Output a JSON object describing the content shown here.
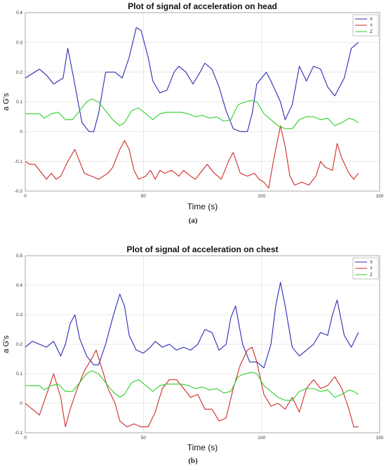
{
  "figures": [
    {
      "caption": "(a)"
    },
    {
      "caption": "(b)"
    }
  ],
  "chart_data": [
    {
      "type": "line",
      "title": "Plot of signal of acceleration on head",
      "xlabel": "Time (s)",
      "ylabel": "a G's",
      "xlim": [
        0,
        150
      ],
      "ylim": [
        -0.2,
        0.4
      ],
      "xticks": [
        "0",
        "50",
        "100",
        "150"
      ],
      "yticks": [
        "-0.2",
        "-0.1",
        "0",
        "0.1",
        "0.2",
        "0.3",
        "0.4"
      ],
      "grid": true,
      "legend_position": "top-right",
      "series": [
        {
          "name": "X",
          "color": "#2b2bb5",
          "x": [
            0,
            2,
            6,
            9,
            12,
            16,
            18,
            20,
            24,
            27,
            29,
            31,
            34,
            38,
            41,
            44,
            47,
            49,
            52,
            54,
            57,
            60,
            63,
            65,
            68,
            71,
            74,
            76,
            79,
            82,
            85,
            88,
            91,
            94,
            96,
            98,
            102,
            104,
            108,
            110,
            113,
            116,
            119,
            122,
            125,
            128,
            131,
            135,
            138,
            141
          ],
          "y": [
            0.18,
            0.19,
            0.21,
            0.19,
            0.16,
            0.18,
            0.28,
            0.2,
            0.03,
            0.0,
            0.0,
            0.06,
            0.2,
            0.2,
            0.18,
            0.25,
            0.35,
            0.34,
            0.25,
            0.17,
            0.13,
            0.14,
            0.2,
            0.22,
            0.2,
            0.16,
            0.2,
            0.23,
            0.21,
            0.15,
            0.07,
            0.01,
            0.0,
            0.0,
            0.06,
            0.16,
            0.2,
            0.17,
            0.1,
            0.04,
            0.09,
            0.22,
            0.17,
            0.22,
            0.21,
            0.15,
            0.12,
            0.18,
            0.28,
            0.3
          ]
        },
        {
          "name": "Y",
          "color": "#d12a2a",
          "x": [
            0,
            2,
            4,
            7,
            9,
            11,
            13,
            15,
            18,
            21,
            23,
            25,
            28,
            31,
            33,
            35,
            37,
            40,
            42,
            44,
            46,
            48,
            51,
            53,
            55,
            57,
            59,
            62,
            65,
            67,
            70,
            72,
            75,
            77,
            80,
            83,
            86,
            88,
            91,
            94,
            97,
            99,
            101,
            103,
            105,
            108,
            110,
            112,
            114,
            117,
            120,
            123,
            125,
            127,
            130,
            132,
            134,
            137,
            139,
            141
          ],
          "y": [
            -0.1,
            -0.11,
            -0.11,
            -0.14,
            -0.16,
            -0.14,
            -0.16,
            -0.15,
            -0.1,
            -0.06,
            -0.1,
            -0.14,
            -0.15,
            -0.16,
            -0.15,
            -0.14,
            -0.12,
            -0.06,
            -0.03,
            -0.06,
            -0.13,
            -0.16,
            -0.15,
            -0.13,
            -0.16,
            -0.13,
            -0.14,
            -0.13,
            -0.15,
            -0.13,
            -0.15,
            -0.16,
            -0.13,
            -0.11,
            -0.14,
            -0.16,
            -0.1,
            -0.07,
            -0.14,
            -0.15,
            -0.14,
            -0.16,
            -0.17,
            -0.19,
            -0.1,
            0.02,
            -0.05,
            -0.15,
            -0.18,
            -0.17,
            -0.18,
            -0.15,
            -0.1,
            -0.12,
            -0.13,
            -0.04,
            -0.09,
            -0.14,
            -0.16,
            -0.14
          ]
        },
        {
          "name": "Z",
          "color": "#2bd12b",
          "x": [
            0,
            3,
            6,
            8,
            11,
            14,
            17,
            20,
            23,
            26,
            28,
            31,
            34,
            37,
            40,
            42,
            45,
            48,
            51,
            54,
            57,
            60,
            63,
            66,
            69,
            72,
            75,
            78,
            81,
            84,
            87,
            90,
            93,
            96,
            98,
            101,
            104,
            107,
            110,
            113,
            116,
            119,
            122,
            125,
            128,
            131,
            134,
            137,
            139,
            141
          ],
          "y": [
            0.06,
            0.06,
            0.06,
            0.045,
            0.06,
            0.065,
            0.04,
            0.04,
            0.07,
            0.1,
            0.11,
            0.1,
            0.07,
            0.04,
            0.02,
            0.03,
            0.07,
            0.08,
            0.06,
            0.04,
            0.06,
            0.065,
            0.065,
            0.065,
            0.06,
            0.05,
            0.055,
            0.045,
            0.05,
            0.035,
            0.04,
            0.09,
            0.1,
            0.105,
            0.1,
            0.06,
            0.04,
            0.02,
            0.01,
            0.01,
            0.04,
            0.05,
            0.05,
            0.04,
            0.045,
            0.02,
            0.03,
            0.045,
            0.04,
            0.03
          ]
        }
      ]
    },
    {
      "type": "line",
      "title": "Plot of signal of acceleration on chest",
      "xlabel": "Time (s)",
      "ylabel": "a G's",
      "xlim": [
        0,
        150
      ],
      "ylim": [
        -0.1,
        0.5
      ],
      "xticks": [
        "0",
        "50",
        "100",
        "150"
      ],
      "yticks": [
        "-0.1",
        "0",
        "0.1",
        "0.2",
        "0.3",
        "0.4",
        "0.5"
      ],
      "grid": true,
      "legend_position": "top-right",
      "series": [
        {
          "name": "X",
          "color": "#2b2bb5",
          "x": [
            0,
            3,
            6,
            9,
            12,
            15,
            17,
            19,
            21,
            23,
            26,
            29,
            31,
            34,
            37,
            40,
            42,
            44,
            47,
            50,
            53,
            55,
            58,
            61,
            64,
            67,
            70,
            73,
            76,
            79,
            82,
            85,
            87,
            89,
            92,
            95,
            98,
            101,
            104,
            106,
            108,
            110,
            113,
            116,
            119,
            122,
            125,
            128,
            130,
            132,
            135,
            138,
            141
          ],
          "y": [
            0.19,
            0.21,
            0.2,
            0.19,
            0.21,
            0.16,
            0.2,
            0.27,
            0.3,
            0.22,
            0.16,
            0.13,
            0.13,
            0.2,
            0.29,
            0.37,
            0.33,
            0.23,
            0.18,
            0.17,
            0.19,
            0.21,
            0.19,
            0.2,
            0.18,
            0.19,
            0.18,
            0.2,
            0.25,
            0.24,
            0.18,
            0.2,
            0.29,
            0.33,
            0.2,
            0.14,
            0.14,
            0.12,
            0.2,
            0.33,
            0.41,
            0.33,
            0.19,
            0.16,
            0.18,
            0.2,
            0.24,
            0.23,
            0.3,
            0.35,
            0.23,
            0.19,
            0.24
          ]
        },
        {
          "name": "Y",
          "color": "#d12a2a",
          "x": [
            0,
            3,
            6,
            9,
            12,
            15,
            17,
            19,
            22,
            25,
            28,
            30,
            32,
            35,
            38,
            40,
            43,
            46,
            49,
            52,
            55,
            58,
            61,
            64,
            67,
            70,
            73,
            76,
            79,
            82,
            85,
            88,
            91,
            94,
            96,
            98,
            101,
            104,
            107,
            110,
            113,
            116,
            119,
            122,
            125,
            128,
            131,
            134,
            137,
            139,
            141
          ],
          "y": [
            0.0,
            -0.02,
            -0.04,
            0.03,
            0.1,
            0.02,
            -0.08,
            -0.02,
            0.05,
            0.11,
            0.15,
            0.18,
            0.13,
            0.05,
            0.0,
            -0.06,
            -0.08,
            -0.07,
            -0.08,
            -0.08,
            -0.03,
            0.05,
            0.08,
            0.08,
            0.05,
            0.02,
            0.03,
            -0.02,
            -0.02,
            -0.06,
            -0.05,
            0.05,
            0.13,
            0.18,
            0.19,
            0.14,
            0.03,
            -0.01,
            0.0,
            -0.02,
            0.02,
            -0.03,
            0.05,
            0.08,
            0.05,
            0.06,
            0.09,
            0.05,
            -0.02,
            -0.08,
            -0.08
          ]
        },
        {
          "name": "Z",
          "color": "#2bd12b",
          "x": [
            0,
            3,
            6,
            8,
            11,
            14,
            17,
            20,
            23,
            26,
            28,
            31,
            34,
            37,
            40,
            42,
            45,
            48,
            51,
            54,
            57,
            60,
            63,
            66,
            69,
            72,
            75,
            78,
            81,
            84,
            87,
            90,
            93,
            96,
            98,
            101,
            104,
            107,
            110,
            113,
            116,
            119,
            122,
            125,
            128,
            131,
            134,
            137,
            139,
            141
          ],
          "y": [
            0.06,
            0.06,
            0.06,
            0.045,
            0.06,
            0.065,
            0.04,
            0.04,
            0.07,
            0.1,
            0.11,
            0.1,
            0.07,
            0.04,
            0.02,
            0.03,
            0.07,
            0.08,
            0.06,
            0.04,
            0.06,
            0.065,
            0.065,
            0.065,
            0.06,
            0.05,
            0.055,
            0.045,
            0.05,
            0.035,
            0.04,
            0.09,
            0.1,
            0.105,
            0.1,
            0.06,
            0.04,
            0.02,
            0.01,
            0.01,
            0.04,
            0.05,
            0.05,
            0.04,
            0.045,
            0.02,
            0.03,
            0.045,
            0.04,
            0.03
          ]
        }
      ]
    }
  ]
}
